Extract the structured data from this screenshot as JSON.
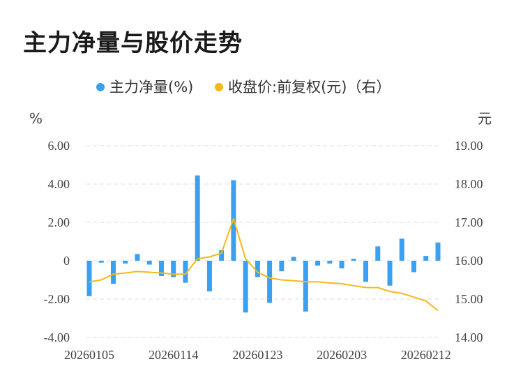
{
  "title": "主力净量与股价走势",
  "legend": {
    "left_label": "主力净量(%)",
    "right_label": "收盘价:前复权(元)（右）"
  },
  "colors": {
    "bar": "#3ba0f0",
    "line": "#f5b81a",
    "grid": "#dddddd"
  },
  "chart_data": {
    "type": "bar",
    "y_left_unit": "%",
    "y_right_unit": "元",
    "y_left_ticks": [
      "6.00",
      "4.00",
      "2.00",
      "0",
      "-2.00",
      "-4.00"
    ],
    "y_right_ticks": [
      "19.00",
      "18.00",
      "17.00",
      "16.00",
      "15.00",
      "14.00"
    ],
    "ylim_left": [
      -4,
      6
    ],
    "ylim_right": [
      14,
      19
    ],
    "x_ticks": [
      "20260105",
      "20260114",
      "20260123",
      "20260203",
      "20260212"
    ],
    "x_tick_index": [
      0,
      7,
      14,
      21,
      28
    ],
    "grid": true,
    "legend_position": "top",
    "series": [
      {
        "name": "主力净量(%)",
        "kind": "bar",
        "axis": "left",
        "values": [
          -1.85,
          -0.1,
          -1.2,
          -0.15,
          0.35,
          -0.2,
          -0.8,
          -0.85,
          -1.15,
          4.45,
          -1.6,
          0.55,
          4.2,
          -2.7,
          -0.85,
          -2.2,
          -0.55,
          0.2,
          -2.65,
          -0.25,
          -0.15,
          -0.4,
          0.1,
          -1.1,
          0.75,
          -1.3,
          1.15,
          -0.6,
          0.25,
          0.95
        ]
      },
      {
        "name": "收盘价:前复权(元)（右）",
        "kind": "line",
        "axis": "right",
        "values": [
          15.45,
          15.5,
          15.65,
          15.68,
          15.72,
          15.7,
          15.68,
          15.65,
          15.65,
          16.05,
          16.1,
          16.2,
          17.1,
          16.05,
          15.7,
          15.55,
          15.5,
          15.48,
          15.45,
          15.45,
          15.42,
          15.4,
          15.35,
          15.3,
          15.3,
          15.2,
          15.15,
          15.05,
          14.95,
          14.7
        ]
      }
    ]
  }
}
